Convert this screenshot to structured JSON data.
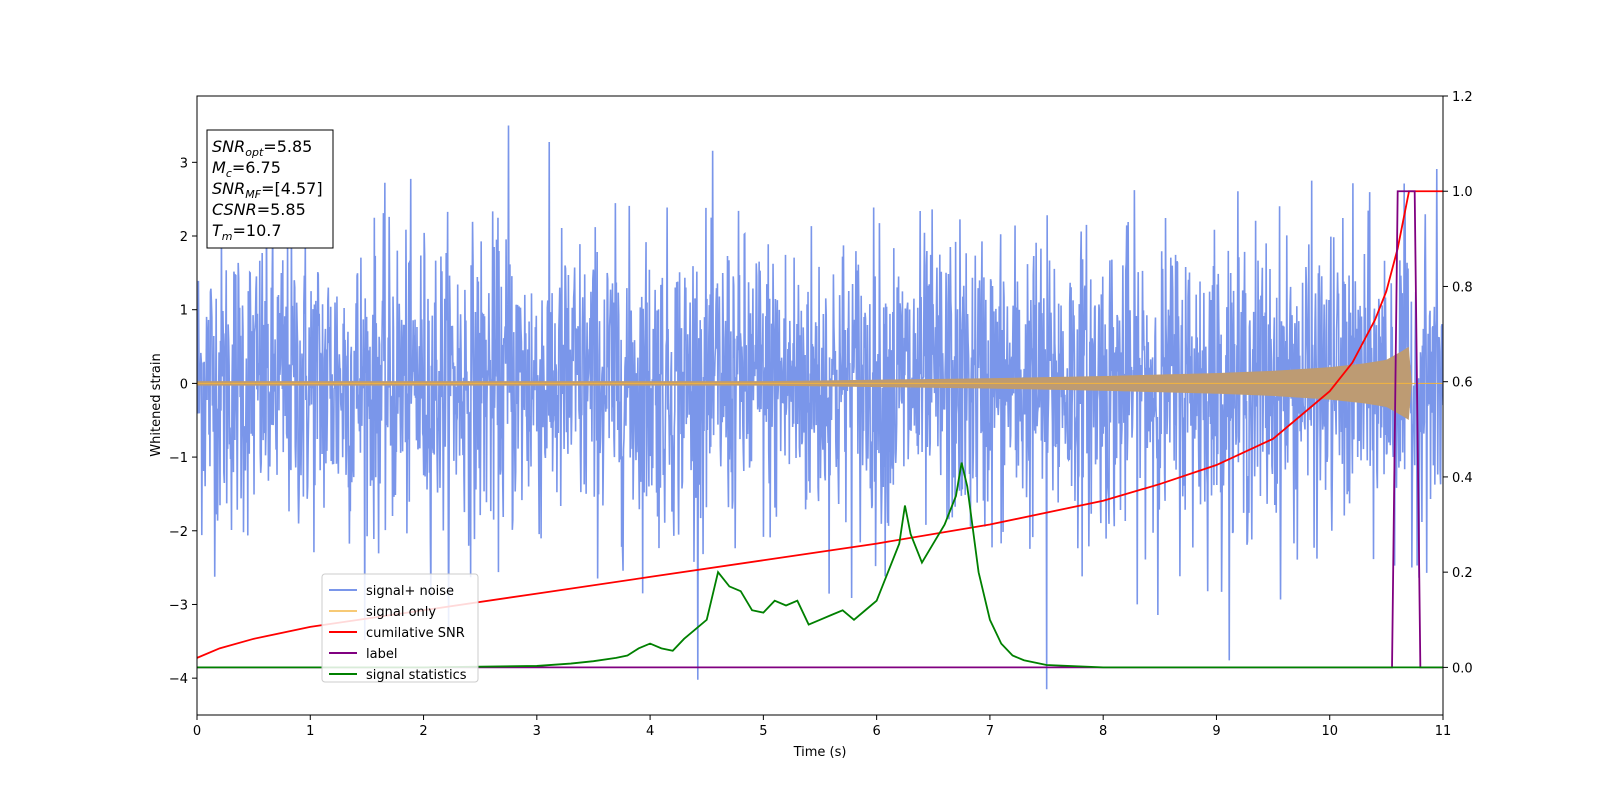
{
  "chart_data": {
    "type": "line",
    "xlabel": "Time (s)",
    "ylabel": "Whitened strain",
    "xlim": [
      0,
      11
    ],
    "ylim_left": [
      -4.5,
      3.9
    ],
    "ylim_right": [
      -0.1,
      1.2
    ],
    "x_ticks": [
      0,
      1,
      2,
      3,
      4,
      5,
      6,
      7,
      8,
      9,
      10,
      11
    ],
    "y_ticks_left": [
      -4,
      -3,
      -2,
      -1,
      0,
      1,
      2,
      3
    ],
    "y_ticks_right": [
      0.0,
      0.2,
      0.4,
      0.6,
      0.8,
      1.0,
      1.2
    ],
    "x_tick_labels": [
      "0",
      "1",
      "2",
      "3",
      "4",
      "5",
      "6",
      "7",
      "8",
      "9",
      "10",
      "11"
    ],
    "y_tick_labels_left": [
      "−4",
      "−3",
      "−2",
      "−1",
      "0",
      "1",
      "2",
      "3"
    ],
    "y_tick_labels_right": [
      "0.0",
      "0.2",
      "0.4",
      "0.6",
      "0.8",
      "1.0",
      "1.2"
    ],
    "legend_position": "lower-left",
    "grid": false,
    "annotation": [
      {
        "base": "SNR",
        "sub": "opt",
        "value": "=5.85"
      },
      {
        "base": "M",
        "sub": "c",
        "value": "=6.75"
      },
      {
        "base": "SNR",
        "sub": "MF",
        "value": "=[4.57]"
      },
      {
        "base": "CSNR",
        "sub": "",
        "value": "=5.85"
      },
      {
        "base": "T",
        "sub": "m",
        "value": "=10.7"
      }
    ],
    "series": [
      {
        "name": "signal+ noise",
        "axis": "left",
        "color": "#4169e1",
        "kind": "noise",
        "std": 1.0,
        "peak_min": -4.15,
        "peak_max": 3.5
      },
      {
        "name": "signal only",
        "axis": "left",
        "color": "#f4b43c",
        "kind": "chirp",
        "env": [
          [
            0,
            0.03
          ],
          [
            5,
            0.03
          ],
          [
            6,
            0.05
          ],
          [
            7,
            0.07
          ],
          [
            8,
            0.1
          ],
          [
            9,
            0.14
          ],
          [
            9.5,
            0.17
          ],
          [
            10,
            0.22
          ],
          [
            10.3,
            0.27
          ],
          [
            10.5,
            0.32
          ],
          [
            10.65,
            0.45
          ],
          [
            10.7,
            0.5
          ],
          [
            10.72,
            0
          ]
        ]
      },
      {
        "name": "cumilative SNR",
        "axis": "right",
        "color": "#ff0000",
        "x": [
          0,
          0.2,
          0.5,
          1,
          2,
          3,
          4,
          5,
          6,
          7,
          7.5,
          8,
          8.5,
          9,
          9.5,
          10,
          10.2,
          10.4,
          10.5,
          10.6,
          10.65,
          10.7,
          11
        ],
        "values": [
          0.02,
          0.04,
          0.06,
          0.085,
          0.12,
          0.155,
          0.19,
          0.225,
          0.26,
          0.3,
          0.325,
          0.35,
          0.385,
          0.425,
          0.48,
          0.58,
          0.64,
          0.73,
          0.79,
          0.88,
          0.94,
          1.0,
          1.0
        ]
      },
      {
        "name": "label",
        "axis": "right",
        "color": "#800080",
        "x": [
          0,
          10.55,
          10.6,
          10.75,
          10.8,
          11
        ],
        "values": [
          0.0,
          0.0,
          1.0,
          1.0,
          0.0,
          0.0
        ]
      },
      {
        "name": "signal statistics",
        "axis": "right",
        "color": "#008000",
        "x": [
          0,
          1,
          2,
          3,
          3.3,
          3.5,
          3.7,
          3.8,
          3.9,
          4.0,
          4.1,
          4.2,
          4.3,
          4.4,
          4.5,
          4.6,
          4.7,
          4.8,
          4.9,
          5.0,
          5.1,
          5.2,
          5.3,
          5.4,
          5.5,
          5.6,
          5.7,
          5.8,
          5.9,
          6.0,
          6.1,
          6.2,
          6.25,
          6.3,
          6.4,
          6.5,
          6.6,
          6.7,
          6.75,
          6.8,
          6.9,
          7.0,
          7.1,
          7.2,
          7.3,
          7.5,
          8,
          9,
          10,
          10.5,
          11
        ],
        "values": [
          0.0,
          0.0,
          0.0,
          0.003,
          0.008,
          0.013,
          0.02,
          0.025,
          0.04,
          0.05,
          0.04,
          0.035,
          0.06,
          0.08,
          0.1,
          0.2,
          0.17,
          0.16,
          0.12,
          0.115,
          0.14,
          0.13,
          0.14,
          0.09,
          0.1,
          0.11,
          0.12,
          0.1,
          0.12,
          0.14,
          0.2,
          0.26,
          0.34,
          0.28,
          0.22,
          0.26,
          0.3,
          0.36,
          0.43,
          0.38,
          0.2,
          0.1,
          0.05,
          0.025,
          0.015,
          0.005,
          0.0,
          0.0,
          0.0,
          0.0,
          0.0
        ]
      }
    ]
  }
}
